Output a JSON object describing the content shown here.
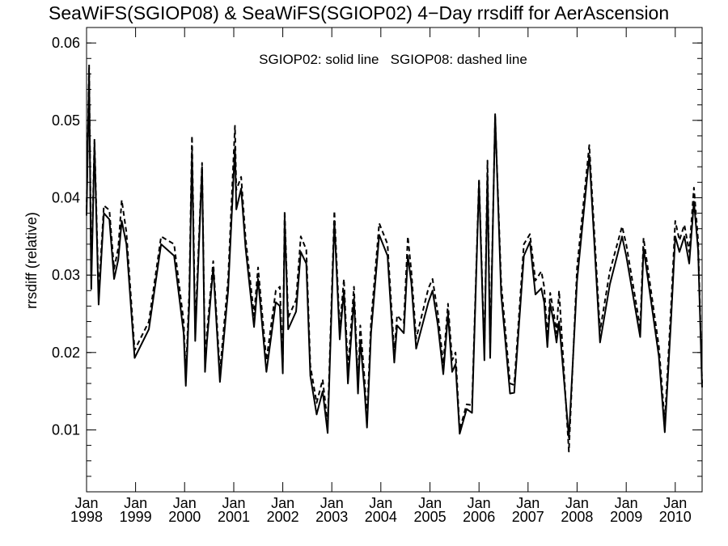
{
  "chart_data": {
    "type": "line",
    "title": "SeaWiFS(SGIOP08) & SeaWiFS(SGIOP02) 4−Day rrsdiff for AerAscension",
    "annotation": "SGIOP02: solid line   SGIOP08: dashed line",
    "xlabel": "",
    "ylabel": "rrsdiff (relative)",
    "xlim": [
      "1998-01-01",
      "2010-07-20"
    ],
    "ylim": [
      0.002,
      0.062
    ],
    "yticks": [
      "0.01",
      "0.02",
      "0.03",
      "0.04",
      "0.05",
      "0.06"
    ],
    "xticks": [
      {
        "month": "Jan",
        "year": "1998"
      },
      {
        "month": "Jan",
        "year": "1999"
      },
      {
        "month": "Jan",
        "year": "2000"
      },
      {
        "month": "Jan",
        "year": "2001"
      },
      {
        "month": "Jan",
        "year": "2002"
      },
      {
        "month": "Jan",
        "year": "2003"
      },
      {
        "month": "Jan",
        "year": "2004"
      },
      {
        "month": "Jan",
        "year": "2005"
      },
      {
        "month": "Jan",
        "year": "2006"
      },
      {
        "month": "Jan",
        "year": "2007"
      },
      {
        "month": "Jan",
        "year": "2008"
      },
      {
        "month": "Jan",
        "year": "2009"
      },
      {
        "month": "Jan",
        "year": "2010"
      }
    ],
    "grid": false,
    "legend": "none",
    "x": [
      "1998-01-01",
      "1998-01-20",
      "1998-02-05",
      "1998-03-01",
      "1998-04-01",
      "1998-05-10",
      "1998-06-20",
      "1998-07-25",
      "1998-08-25",
      "1998-09-20",
      "1998-10-25",
      "1998-12-25",
      "1999-04-10",
      "1999-07-10",
      "1999-10-15",
      "1999-12-25",
      "2000-01-10",
      "2000-02-05",
      "2000-02-25",
      "2000-03-20",
      "2000-05-10",
      "2000-06-01",
      "2000-06-15",
      "2000-08-01",
      "2000-09-20",
      "2000-11-20",
      "2001-01-10",
      "2001-01-20",
      "2001-02-25",
      "2001-03-30",
      "2001-06-01",
      "2001-07-01",
      "2001-09-01",
      "2001-11-10",
      "2001-12-10",
      "2002-01-01",
      "2002-01-15",
      "2002-02-10",
      "2002-04-10",
      "2002-05-15",
      "2002-06-25",
      "2002-07-25",
      "2002-09-10",
      "2002-10-25",
      "2002-12-01",
      "2003-01-20",
      "2003-03-01",
      "2003-04-01",
      "2003-05-01",
      "2003-06-15",
      "2003-07-15",
      "2003-08-01",
      "2003-09-01",
      "2003-09-20",
      "2003-10-20",
      "2003-12-20",
      "2004-02-20",
      "2004-04-10",
      "2004-05-01",
      "2004-06-20",
      "2004-07-20",
      "2004-08-15",
      "2004-09-20",
      "2004-12-20",
      "2005-01-20",
      "2005-03-01",
      "2005-04-10",
      "2005-05-15",
      "2005-06-15",
      "2005-07-10",
      "2005-08-10",
      "2005-10-01",
      "2005-11-10",
      "2006-01-01",
      "2006-02-10",
      "2006-03-05",
      "2006-03-25",
      "2006-05-01",
      "2006-06-15",
      "2006-08-20",
      "2006-09-20",
      "2006-12-01",
      "2007-01-15",
      "2007-02-25",
      "2007-04-10",
      "2007-05-01",
      "2007-05-25",
      "2007-06-15",
      "2007-07-10",
      "2007-08-01",
      "2007-08-20",
      "2007-11-01",
      "2008-01-01",
      "2008-04-01",
      "2008-06-20",
      "2008-09-01",
      "2008-12-01",
      "2009-01-01",
      "2009-04-15",
      "2009-05-10",
      "2009-09-01",
      "2009-10-15",
      "2009-12-01",
      "2010-01-01",
      "2010-02-01",
      "2010-03-10",
      "2010-04-15",
      "2010-05-20",
      "2010-06-20",
      "2010-07-20"
    ],
    "series": [
      {
        "name": "SGIOP02",
        "style": "solid",
        "values": [
          0.0377,
          0.0562,
          0.0282,
          0.047,
          0.0262,
          0.038,
          0.0372,
          0.0295,
          0.032,
          0.037,
          0.034,
          0.0193,
          0.023,
          0.034,
          0.0325,
          0.0225,
          0.0157,
          0.0265,
          0.046,
          0.0215,
          0.044,
          0.0175,
          0.0213,
          0.031,
          0.0162,
          0.028,
          0.0465,
          0.0385,
          0.0412,
          0.0335,
          0.0233,
          0.0295,
          0.0175,
          0.0265,
          0.026,
          0.0173,
          0.0375,
          0.023,
          0.0253,
          0.033,
          0.0315,
          0.017,
          0.012,
          0.015,
          0.0096,
          0.037,
          0.0217,
          0.028,
          0.016,
          0.027,
          0.0147,
          0.0215,
          0.0153,
          0.0103,
          0.0225,
          0.0352,
          0.0325,
          0.0187,
          0.0235,
          0.0225,
          0.0325,
          0.029,
          0.0205,
          0.0265,
          0.028,
          0.0235,
          0.0172,
          0.025,
          0.0175,
          0.0185,
          0.0095,
          0.0127,
          0.0122,
          0.042,
          0.019,
          0.043,
          0.0193,
          0.0508,
          0.0275,
          0.0147,
          0.0148,
          0.0325,
          0.0343,
          0.0275,
          0.0283,
          0.0265,
          0.0207,
          0.0263,
          0.024,
          0.0213,
          0.024,
          0.009,
          0.0293,
          0.0455,
          0.0213,
          0.0288,
          0.035,
          0.0325,
          0.022,
          0.0335,
          0.0195,
          0.0097,
          0.0243,
          0.035,
          0.033,
          0.035,
          0.0315,
          0.0395,
          0.0333,
          0.0155
        ]
      },
      {
        "name": "SGIOP08",
        "style": "dashed",
        "values": [
          0.0384,
          0.0572,
          0.0296,
          0.0476,
          0.0275,
          0.039,
          0.0384,
          0.0308,
          0.0335,
          0.0397,
          0.0355,
          0.0203,
          0.024,
          0.035,
          0.034,
          0.024,
          0.017,
          0.028,
          0.048,
          0.023,
          0.0445,
          0.0188,
          0.0225,
          0.0318,
          0.0175,
          0.0295,
          0.0493,
          0.041,
          0.0427,
          0.0348,
          0.0248,
          0.031,
          0.019,
          0.028,
          0.0285,
          0.0185,
          0.0383,
          0.0245,
          0.0268,
          0.035,
          0.0333,
          0.0183,
          0.0135,
          0.0165,
          0.0108,
          0.0383,
          0.023,
          0.0295,
          0.0178,
          0.0285,
          0.016,
          0.0235,
          0.0168,
          0.0115,
          0.024,
          0.0367,
          0.034,
          0.02,
          0.0248,
          0.0238,
          0.035,
          0.0305,
          0.0218,
          0.0283,
          0.0295,
          0.025,
          0.0185,
          0.0263,
          0.019,
          0.02,
          0.01,
          0.0133,
          0.0132,
          0.0425,
          0.02,
          0.0448,
          0.0205,
          0.0505,
          0.029,
          0.016,
          0.0158,
          0.034,
          0.0353,
          0.0293,
          0.0305,
          0.0285,
          0.022,
          0.0277,
          0.0253,
          0.0225,
          0.028,
          0.0072,
          0.031,
          0.0468,
          0.0228,
          0.0305,
          0.0363,
          0.034,
          0.0232,
          0.0348,
          0.0208,
          0.011,
          0.026,
          0.037,
          0.0345,
          0.0365,
          0.033,
          0.0413,
          0.0345,
          0.016
        ]
      }
    ]
  }
}
